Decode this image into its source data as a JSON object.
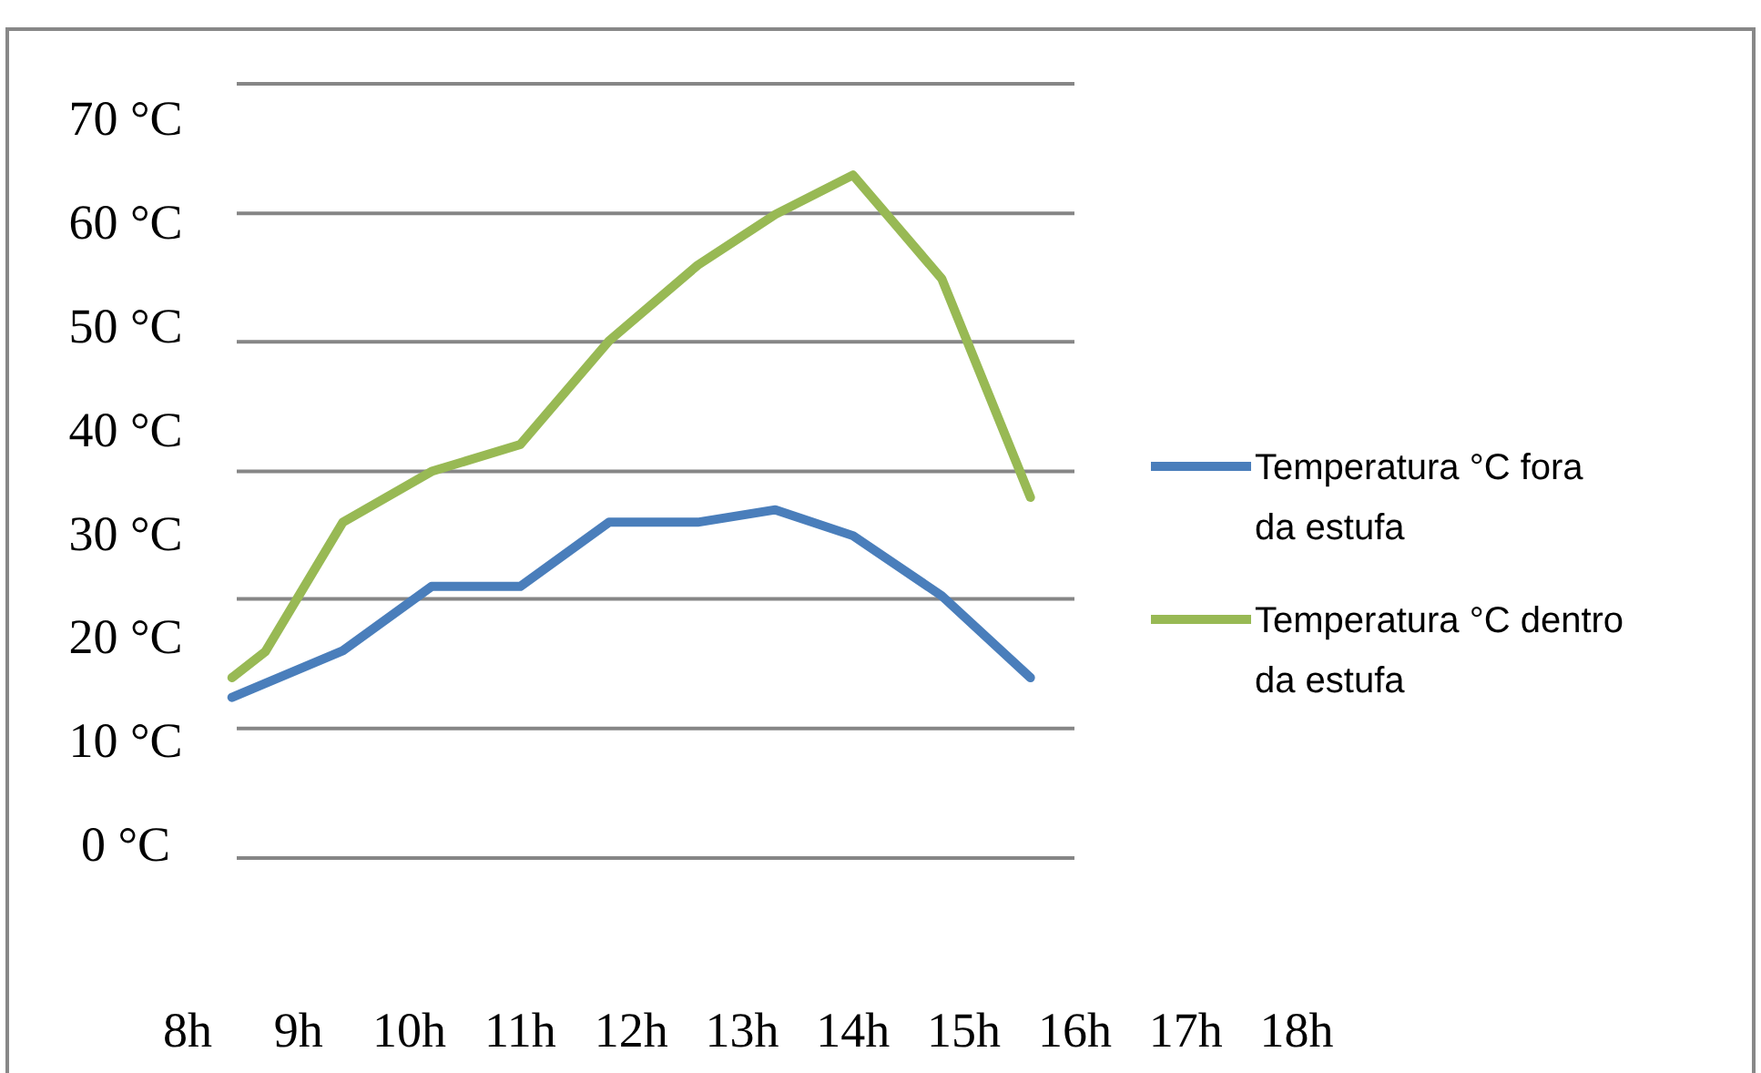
{
  "chart_data": {
    "type": "line",
    "xlim": [
      8,
      18
    ],
    "xticks": [
      {
        "value": 8,
        "label": "8h"
      },
      {
        "value": 9,
        "label": "9h"
      },
      {
        "value": 10,
        "label": "10h"
      },
      {
        "value": 11,
        "label": "11h"
      },
      {
        "value": 12,
        "label": "12h"
      },
      {
        "value": 13,
        "label": "13h"
      },
      {
        "value": 14,
        "label": "14h"
      },
      {
        "value": 15,
        "label": "15h"
      },
      {
        "value": 16,
        "label": "16h"
      },
      {
        "value": 17,
        "label": "17h"
      },
      {
        "value": 18,
        "label": "18h"
      }
    ],
    "ylim": [
      -1.4,
      73.3
    ],
    "yticks": [
      {
        "value": -1.4,
        "label": null
      },
      {
        "value": 0,
        "label": "0 °C"
      },
      {
        "value": 10,
        "label": "10 °C"
      },
      {
        "value": 11.1,
        "label": null
      },
      {
        "value": 20,
        "label": "20 °C"
      },
      {
        "value": 23.6,
        "label": null
      },
      {
        "value": 30,
        "label": "30 °C"
      },
      {
        "value": 35.9,
        "label": null
      },
      {
        "value": 40,
        "label": "40 °C"
      },
      {
        "value": 48.4,
        "label": null
      },
      {
        "value": 50,
        "label": "50 °C"
      },
      {
        "value": 60,
        "label": "60 °C"
      },
      {
        "value": 60.8,
        "label": null
      },
      {
        "value": 70,
        "label": "70 °C"
      },
      {
        "value": 73.3,
        "label": null
      }
    ],
    "grid": "y",
    "legend": "right",
    "marker": "none",
    "series": [
      {
        "name": "Temperatura °C fora da estufa",
        "color": "#4a7ebb",
        "x": [
          8.4,
          9.4,
          10.2,
          11.0,
          11.8,
          12.6,
          13.3,
          14.0,
          14.8,
          15.6
        ],
        "values": [
          14.1,
          18.6,
          24.8,
          24.8,
          31.0,
          31.0,
          32.2,
          29.7,
          23.9,
          16.0
        ]
      },
      {
        "name": "Temperatura °C dentro da estufa",
        "color": "#98b954",
        "x": [
          8.4,
          8.7,
          9.4,
          10.2,
          11.0,
          11.8,
          12.6,
          13.3,
          14.0,
          14.8,
          15.6
        ],
        "values": [
          16.0,
          18.5,
          31.0,
          35.9,
          38.5,
          48.5,
          55.8,
          60.7,
          64.5,
          54.5,
          33.4
        ]
      }
    ]
  }
}
